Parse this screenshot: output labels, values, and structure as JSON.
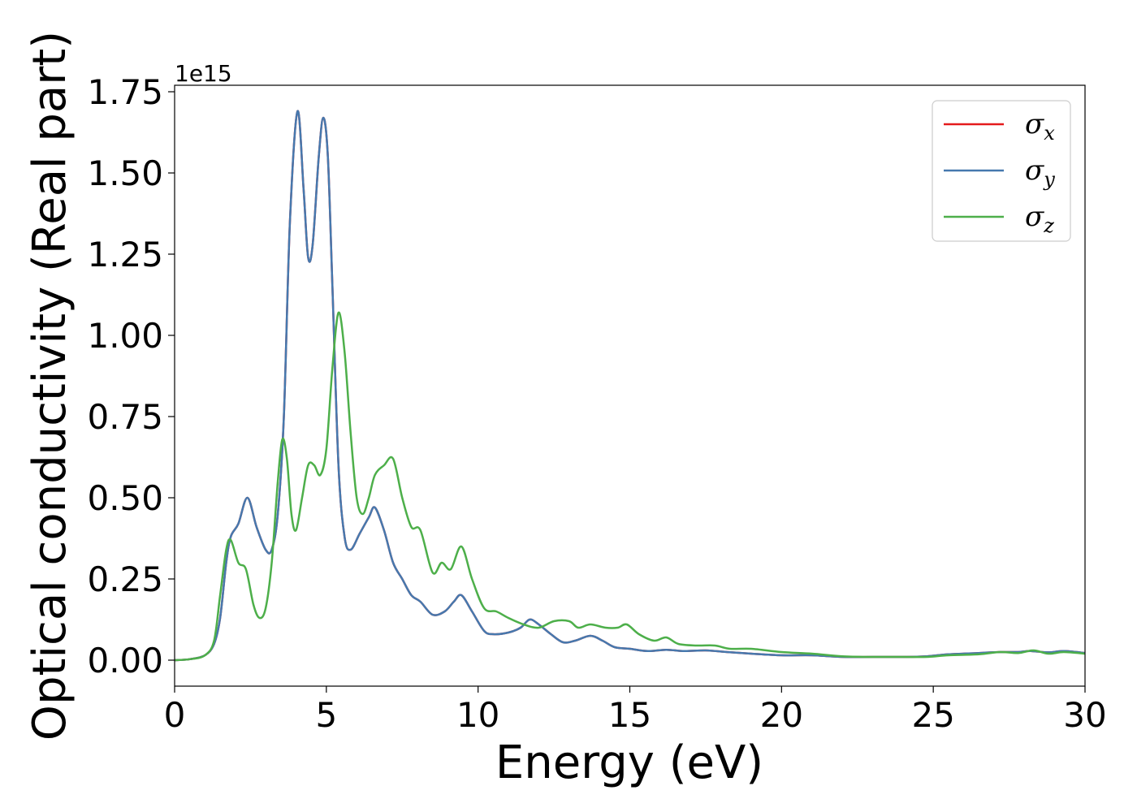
{
  "chart_data": {
    "type": "line",
    "title": "",
    "xlabel": "Energy (eV)",
    "ylabel": "Optical conductivity (Real part)",
    "y_offset_label": "1e15",
    "xlim": [
      0,
      30
    ],
    "ylim": [
      -0.08,
      1.77
    ],
    "y_scale_note": "values in units of 1e15",
    "xticks": [
      0,
      5,
      10,
      15,
      20,
      25,
      30
    ],
    "xtick_labels": [
      "0",
      "5",
      "10",
      "15",
      "20",
      "25",
      "30"
    ],
    "yticks": [
      0.0,
      0.25,
      0.5,
      0.75,
      1.0,
      1.25,
      1.5,
      1.75
    ],
    "ytick_labels": [
      "0.00",
      "0.25",
      "0.50",
      "0.75",
      "1.00",
      "1.25",
      "1.50",
      "1.75"
    ],
    "grid": false,
    "legend_position": "top-right",
    "series": [
      {
        "name": "σx",
        "symbol": "σ",
        "subscript": "x",
        "color": "#e41a1c",
        "points": [
          [
            0,
            0
          ],
          [
            0.5,
            0.003
          ],
          [
            1.0,
            0.015
          ],
          [
            1.3,
            0.05
          ],
          [
            1.5,
            0.13
          ],
          [
            1.7,
            0.3
          ],
          [
            1.85,
            0.38
          ],
          [
            2.1,
            0.42
          ],
          [
            2.4,
            0.5
          ],
          [
            2.7,
            0.41
          ],
          [
            3.0,
            0.34
          ],
          [
            3.2,
            0.34
          ],
          [
            3.4,
            0.45
          ],
          [
            3.6,
            0.75
          ],
          [
            3.8,
            1.35
          ],
          [
            4.05,
            1.69
          ],
          [
            4.25,
            1.45
          ],
          [
            4.4,
            1.24
          ],
          [
            4.55,
            1.28
          ],
          [
            4.75,
            1.55
          ],
          [
            4.9,
            1.67
          ],
          [
            5.05,
            1.55
          ],
          [
            5.2,
            1.15
          ],
          [
            5.4,
            0.6
          ],
          [
            5.6,
            0.38
          ],
          [
            5.8,
            0.34
          ],
          [
            6.1,
            0.39
          ],
          [
            6.4,
            0.44
          ],
          [
            6.6,
            0.47
          ],
          [
            6.9,
            0.4
          ],
          [
            7.2,
            0.3
          ],
          [
            7.5,
            0.25
          ],
          [
            7.8,
            0.2
          ],
          [
            8.1,
            0.18
          ],
          [
            8.5,
            0.14
          ],
          [
            8.9,
            0.15
          ],
          [
            9.2,
            0.18
          ],
          [
            9.45,
            0.2
          ],
          [
            9.8,
            0.15
          ],
          [
            10.2,
            0.09
          ],
          [
            10.5,
            0.08
          ],
          [
            11.0,
            0.085
          ],
          [
            11.4,
            0.1
          ],
          [
            11.7,
            0.125
          ],
          [
            12.0,
            0.11
          ],
          [
            12.4,
            0.08
          ],
          [
            12.8,
            0.055
          ],
          [
            13.2,
            0.06
          ],
          [
            13.7,
            0.075
          ],
          [
            14.1,
            0.06
          ],
          [
            14.5,
            0.04
          ],
          [
            15.0,
            0.035
          ],
          [
            15.6,
            0.028
          ],
          [
            16.2,
            0.032
          ],
          [
            16.8,
            0.028
          ],
          [
            17.5,
            0.03
          ],
          [
            18.2,
            0.025
          ],
          [
            19.0,
            0.02
          ],
          [
            20.0,
            0.015
          ],
          [
            21.0,
            0.015
          ],
          [
            22.0,
            0.01
          ],
          [
            23.0,
            0.01
          ],
          [
            24.0,
            0.01
          ],
          [
            24.8,
            0.012
          ],
          [
            25.5,
            0.018
          ],
          [
            26.5,
            0.022
          ],
          [
            27.2,
            0.025
          ],
          [
            27.8,
            0.025
          ],
          [
            28.2,
            0.028
          ],
          [
            28.8,
            0.024
          ],
          [
            29.3,
            0.028
          ],
          [
            30.0,
            0.022
          ]
        ]
      },
      {
        "name": "σy",
        "symbol": "σ",
        "subscript": "y",
        "color": "#4679ae",
        "points": [
          [
            0,
            0
          ],
          [
            0.5,
            0.003
          ],
          [
            1.0,
            0.015
          ],
          [
            1.3,
            0.05
          ],
          [
            1.5,
            0.13
          ],
          [
            1.7,
            0.3
          ],
          [
            1.85,
            0.38
          ],
          [
            2.1,
            0.42
          ],
          [
            2.4,
            0.5
          ],
          [
            2.7,
            0.41
          ],
          [
            3.0,
            0.34
          ],
          [
            3.2,
            0.34
          ],
          [
            3.4,
            0.45
          ],
          [
            3.6,
            0.75
          ],
          [
            3.8,
            1.35
          ],
          [
            4.05,
            1.69
          ],
          [
            4.25,
            1.45
          ],
          [
            4.4,
            1.24
          ],
          [
            4.55,
            1.28
          ],
          [
            4.75,
            1.55
          ],
          [
            4.9,
            1.67
          ],
          [
            5.05,
            1.55
          ],
          [
            5.2,
            1.15
          ],
          [
            5.4,
            0.6
          ],
          [
            5.6,
            0.38
          ],
          [
            5.8,
            0.34
          ],
          [
            6.1,
            0.39
          ],
          [
            6.4,
            0.44
          ],
          [
            6.6,
            0.47
          ],
          [
            6.9,
            0.4
          ],
          [
            7.2,
            0.3
          ],
          [
            7.5,
            0.25
          ],
          [
            7.8,
            0.2
          ],
          [
            8.1,
            0.18
          ],
          [
            8.5,
            0.14
          ],
          [
            8.9,
            0.15
          ],
          [
            9.2,
            0.18
          ],
          [
            9.45,
            0.2
          ],
          [
            9.8,
            0.15
          ],
          [
            10.2,
            0.09
          ],
          [
            10.5,
            0.08
          ],
          [
            11.0,
            0.085
          ],
          [
            11.4,
            0.1
          ],
          [
            11.7,
            0.125
          ],
          [
            12.0,
            0.11
          ],
          [
            12.4,
            0.08
          ],
          [
            12.8,
            0.055
          ],
          [
            13.2,
            0.06
          ],
          [
            13.7,
            0.075
          ],
          [
            14.1,
            0.06
          ],
          [
            14.5,
            0.04
          ],
          [
            15.0,
            0.035
          ],
          [
            15.6,
            0.028
          ],
          [
            16.2,
            0.032
          ],
          [
            16.8,
            0.028
          ],
          [
            17.5,
            0.03
          ],
          [
            18.2,
            0.025
          ],
          [
            19.0,
            0.02
          ],
          [
            20.0,
            0.015
          ],
          [
            21.0,
            0.015
          ],
          [
            22.0,
            0.01
          ],
          [
            23.0,
            0.01
          ],
          [
            24.0,
            0.01
          ],
          [
            24.8,
            0.012
          ],
          [
            25.5,
            0.018
          ],
          [
            26.5,
            0.022
          ],
          [
            27.2,
            0.025
          ],
          [
            27.8,
            0.025
          ],
          [
            28.2,
            0.028
          ],
          [
            28.8,
            0.024
          ],
          [
            29.3,
            0.028
          ],
          [
            30.0,
            0.022
          ]
        ]
      },
      {
        "name": "σz",
        "symbol": "σ",
        "subscript": "z",
        "color": "#4daf4a",
        "points": [
          [
            0,
            0
          ],
          [
            0.5,
            0.003
          ],
          [
            1.0,
            0.015
          ],
          [
            1.3,
            0.06
          ],
          [
            1.5,
            0.2
          ],
          [
            1.7,
            0.34
          ],
          [
            1.85,
            0.37
          ],
          [
            2.1,
            0.3
          ],
          [
            2.35,
            0.28
          ],
          [
            2.6,
            0.17
          ],
          [
            2.8,
            0.13
          ],
          [
            3.0,
            0.16
          ],
          [
            3.2,
            0.3
          ],
          [
            3.4,
            0.55
          ],
          [
            3.55,
            0.68
          ],
          [
            3.7,
            0.62
          ],
          [
            3.85,
            0.45
          ],
          [
            4.0,
            0.4
          ],
          [
            4.2,
            0.5
          ],
          [
            4.4,
            0.6
          ],
          [
            4.6,
            0.6
          ],
          [
            4.8,
            0.57
          ],
          [
            5.0,
            0.65
          ],
          [
            5.2,
            0.9
          ],
          [
            5.4,
            1.07
          ],
          [
            5.6,
            0.95
          ],
          [
            5.8,
            0.7
          ],
          [
            6.0,
            0.5
          ],
          [
            6.2,
            0.45
          ],
          [
            6.4,
            0.5
          ],
          [
            6.6,
            0.57
          ],
          [
            6.9,
            0.6
          ],
          [
            7.2,
            0.62
          ],
          [
            7.5,
            0.5
          ],
          [
            7.8,
            0.41
          ],
          [
            8.1,
            0.4
          ],
          [
            8.5,
            0.27
          ],
          [
            8.8,
            0.3
          ],
          [
            9.1,
            0.28
          ],
          [
            9.45,
            0.35
          ],
          [
            9.8,
            0.25
          ],
          [
            10.2,
            0.16
          ],
          [
            10.6,
            0.15
          ],
          [
            11.0,
            0.13
          ],
          [
            11.5,
            0.11
          ],
          [
            12.0,
            0.1
          ],
          [
            12.5,
            0.12
          ],
          [
            13.0,
            0.12
          ],
          [
            13.3,
            0.1
          ],
          [
            13.7,
            0.11
          ],
          [
            14.2,
            0.1
          ],
          [
            14.6,
            0.1
          ],
          [
            14.9,
            0.11
          ],
          [
            15.3,
            0.08
          ],
          [
            15.8,
            0.06
          ],
          [
            16.2,
            0.07
          ],
          [
            16.6,
            0.05
          ],
          [
            17.2,
            0.045
          ],
          [
            17.8,
            0.045
          ],
          [
            18.3,
            0.035
          ],
          [
            19.0,
            0.035
          ],
          [
            20.0,
            0.025
          ],
          [
            21.0,
            0.02
          ],
          [
            22.0,
            0.012
          ],
          [
            23.0,
            0.01
          ],
          [
            24.0,
            0.01
          ],
          [
            24.8,
            0.01
          ],
          [
            25.5,
            0.015
          ],
          [
            26.5,
            0.018
          ],
          [
            27.2,
            0.025
          ],
          [
            27.8,
            0.022
          ],
          [
            28.3,
            0.03
          ],
          [
            28.8,
            0.02
          ],
          [
            29.3,
            0.025
          ],
          [
            30.0,
            0.02
          ]
        ]
      }
    ]
  }
}
